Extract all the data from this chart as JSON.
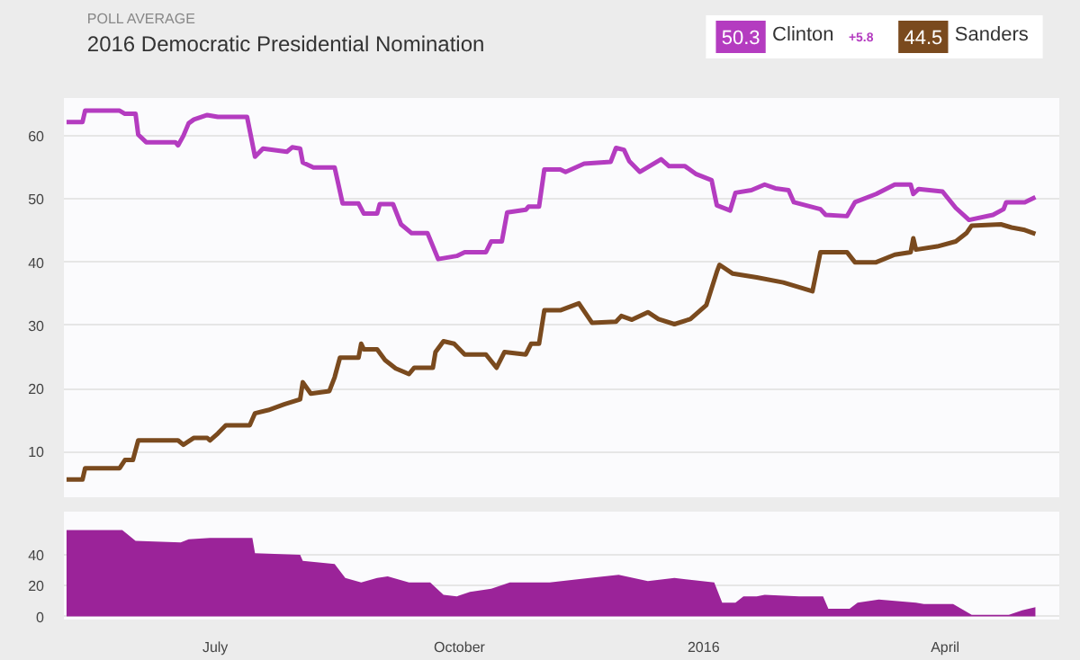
{
  "chart_data": [
    {
      "type": "line",
      "title": "2016 Democratic Presidential Nomination",
      "subtitle": "POLL AVERAGE",
      "legend": "top right",
      "grid": "y",
      "tick_labels": "y",
      "line_style": "solid",
      "annotations": [
        "50.3",
        "44.5",
        "+5.8"
      ],
      "xlim": [
        "2015-05-05",
        "2016-05-14"
      ],
      "ylim": [
        2.8,
        66
      ],
      "yticks": [
        10,
        20,
        30,
        40,
        50,
        60
      ],
      "series": [
        {
          "name": "Clinton",
          "color": "#b43cc0",
          "x": [
            "2015-05-06",
            "2015-05-12",
            "2015-05-13",
            "2015-05-26",
            "2015-05-28",
            "2015-06-01",
            "2015-06-02",
            "2015-06-05",
            "2015-06-16",
            "2015-06-17",
            "2015-06-19",
            "2015-06-21",
            "2015-06-23",
            "2015-06-28",
            "2015-07-02",
            "2015-07-13",
            "2015-07-16",
            "2015-07-19",
            "2015-07-28",
            "2015-07-30",
            "2015-08-02",
            "2015-08-03",
            "2015-08-07",
            "2015-08-15",
            "2015-08-18",
            "2015-08-24",
            "2015-08-26",
            "2015-08-31",
            "2015-09-01",
            "2015-09-06",
            "2015-09-09",
            "2015-09-13",
            "2015-09-19",
            "2015-09-23",
            "2015-09-30",
            "2015-10-03",
            "2015-10-11",
            "2015-10-13",
            "2015-10-17",
            "2015-10-19",
            "2015-10-26",
            "2015-10-27",
            "2015-10-31",
            "2015-11-02",
            "2015-11-08",
            "2015-11-10",
            "2015-11-17",
            "2015-11-27",
            "2015-11-29",
            "2015-12-02",
            "2015-12-04",
            "2015-12-08",
            "2015-12-16",
            "2015-12-19",
            "2015-12-25",
            "2015-12-29",
            "2016-01-04",
            "2016-01-06",
            "2016-01-11",
            "2016-01-13",
            "2016-01-19",
            "2016-01-24",
            "2016-01-28",
            "2016-02-02",
            "2016-02-04",
            "2016-02-14",
            "2016-02-16",
            "2016-02-24",
            "2016-02-27",
            "2016-03-06",
            "2016-03-13",
            "2016-03-19",
            "2016-03-20",
            "2016-03-22",
            "2016-03-31",
            "2016-04-05",
            "2016-04-10",
            "2016-04-19",
            "2016-04-23",
            "2016-04-24",
            "2016-05-01",
            "2016-05-05"
          ],
          "values": [
            62.2,
            62.2,
            64,
            64,
            63.5,
            63.5,
            60.2,
            59,
            59,
            58.5,
            60,
            62,
            62.6,
            63.3,
            63,
            63,
            56.7,
            58,
            57.5,
            58.2,
            58,
            55.8,
            55,
            55,
            49.3,
            49.3,
            47.7,
            47.7,
            49.2,
            49.2,
            46,
            44.6,
            44.6,
            40.5,
            41,
            41.6,
            41.6,
            43.3,
            43.3,
            47.9,
            48.3,
            48.8,
            48.8,
            54.7,
            54.7,
            54.3,
            55.6,
            55.9,
            58.1,
            57.8,
            56,
            54.3,
            56.3,
            55.2,
            55.2,
            54,
            53,
            49,
            48.2,
            51,
            51.4,
            52.3,
            51.7,
            51.4,
            49.5,
            48.4,
            47.5,
            47.3,
            49.5,
            50.8,
            52.3,
            52.3,
            50.8,
            51.6,
            51.2,
            48.6,
            46.7,
            47.5,
            48.4,
            49.5,
            49.5,
            50.3
          ]
        },
        {
          "name": "Sanders",
          "color": "#7a4a1e",
          "x": [
            "2015-05-06",
            "2015-05-12",
            "2015-05-13",
            "2015-05-26",
            "2015-05-28",
            "2015-05-31",
            "2015-06-02",
            "2015-06-17",
            "2015-06-19",
            "2015-06-23",
            "2015-06-28",
            "2015-06-29",
            "2015-07-02",
            "2015-07-05",
            "2015-07-14",
            "2015-07-16",
            "2015-07-21",
            "2015-07-27",
            "2015-08-02",
            "2015-08-03",
            "2015-08-06",
            "2015-08-13",
            "2015-08-15",
            "2015-08-17",
            "2015-08-24",
            "2015-08-25",
            "2015-08-26",
            "2015-08-31",
            "2015-09-03",
            "2015-09-07",
            "2015-09-12",
            "2015-09-14",
            "2015-09-21",
            "2015-09-22",
            "2015-09-25",
            "2015-09-29",
            "2015-10-03",
            "2015-10-11",
            "2015-10-15",
            "2015-10-18",
            "2015-10-26",
            "2015-10-28",
            "2015-10-31",
            "2015-11-02",
            "2015-11-08",
            "2015-11-15",
            "2015-11-20",
            "2015-11-29",
            "2015-12-01",
            "2015-12-05",
            "2015-12-11",
            "2015-12-15",
            "2015-12-21",
            "2015-12-27",
            "2016-01-02",
            "2016-01-06",
            "2016-01-07",
            "2016-01-12",
            "2016-01-21",
            "2016-01-31",
            "2016-02-11",
            "2016-02-14",
            "2016-02-24",
            "2016-02-27",
            "2016-03-06",
            "2016-03-13",
            "2016-03-19",
            "2016-03-20",
            "2016-03-21",
            "2016-03-29",
            "2016-04-05",
            "2016-04-09",
            "2016-04-11",
            "2016-04-22",
            "2016-04-26",
            "2016-05-01",
            "2016-05-05"
          ],
          "values": [
            5.6,
            5.6,
            7.4,
            7.4,
            8.7,
            8.7,
            11.8,
            11.8,
            11.1,
            12.2,
            12.2,
            11.8,
            12.9,
            14.2,
            14.2,
            16.1,
            16.6,
            17.5,
            18.3,
            21,
            19.2,
            19.6,
            21.8,
            24.9,
            24.9,
            27.1,
            26.2,
            26.2,
            24.5,
            23.2,
            22.3,
            23.3,
            23.3,
            25.8,
            27.5,
            27.1,
            25.4,
            25.4,
            23.3,
            25.8,
            25.4,
            27.1,
            27.1,
            32.4,
            32.4,
            33.5,
            30.4,
            30.6,
            31.5,
            30.9,
            32.1,
            31,
            30.2,
            31,
            33.2,
            38.5,
            39.6,
            38.2,
            37.6,
            36.8,
            35.4,
            41.6,
            41.6,
            40,
            40,
            41.2,
            41.6,
            43.8,
            42,
            42.5,
            43.3,
            44.6,
            45.8,
            46,
            45.5,
            45.1,
            44.5
          ]
        }
      ]
    },
    {
      "type": "area",
      "grid": "y",
      "xlim": [
        "2015-05-05",
        "2016-05-14"
      ],
      "ylim": [
        -2,
        68
      ],
      "yticks": [
        0,
        20,
        40
      ],
      "xticks": [
        {
          "value": "2015-07-01",
          "label": "July"
        },
        {
          "value": "2015-10-01",
          "label": "October"
        },
        {
          "value": "2016-01-01",
          "label": "2016"
        },
        {
          "value": "2016-04-01",
          "label": "April"
        }
      ],
      "series": [
        {
          "color": "#9b2399",
          "x": [
            "2015-05-06",
            "2015-05-27",
            "2015-06-01",
            "2015-06-18",
            "2015-06-21",
            "2015-06-29",
            "2015-07-15",
            "2015-07-16",
            "2015-08-02",
            "2015-08-03",
            "2015-08-15",
            "2015-08-19",
            "2015-08-25",
            "2015-08-31",
            "2015-09-04",
            "2015-09-12",
            "2015-09-20",
            "2015-09-25",
            "2015-09-30",
            "2015-10-05",
            "2015-10-13",
            "2015-10-20",
            "2015-11-04",
            "2015-11-19",
            "2015-11-30",
            "2015-12-11",
            "2015-12-21",
            "2016-01-05",
            "2016-01-08",
            "2016-01-13",
            "2016-01-16",
            "2016-01-21",
            "2016-01-24",
            "2016-02-06",
            "2016-02-15",
            "2016-02-17",
            "2016-02-25",
            "2016-02-28",
            "2016-03-07",
            "2016-03-21",
            "2016-03-24",
            "2016-04-04",
            "2016-04-11",
            "2016-04-25",
            "2016-04-30",
            "2016-05-05"
          ],
          "values": [
            56,
            56,
            49,
            48,
            50,
            51,
            51,
            41,
            40,
            36,
            34,
            25,
            22,
            25,
            26,
            22,
            22,
            14,
            13,
            16,
            18,
            22,
            22,
            25,
            27,
            23,
            25,
            22,
            9,
            9,
            13,
            13,
            14,
            13,
            13,
            5,
            5,
            9,
            11,
            9,
            8,
            8,
            1,
            1,
            4,
            6
          ]
        }
      ]
    }
  ]
}
